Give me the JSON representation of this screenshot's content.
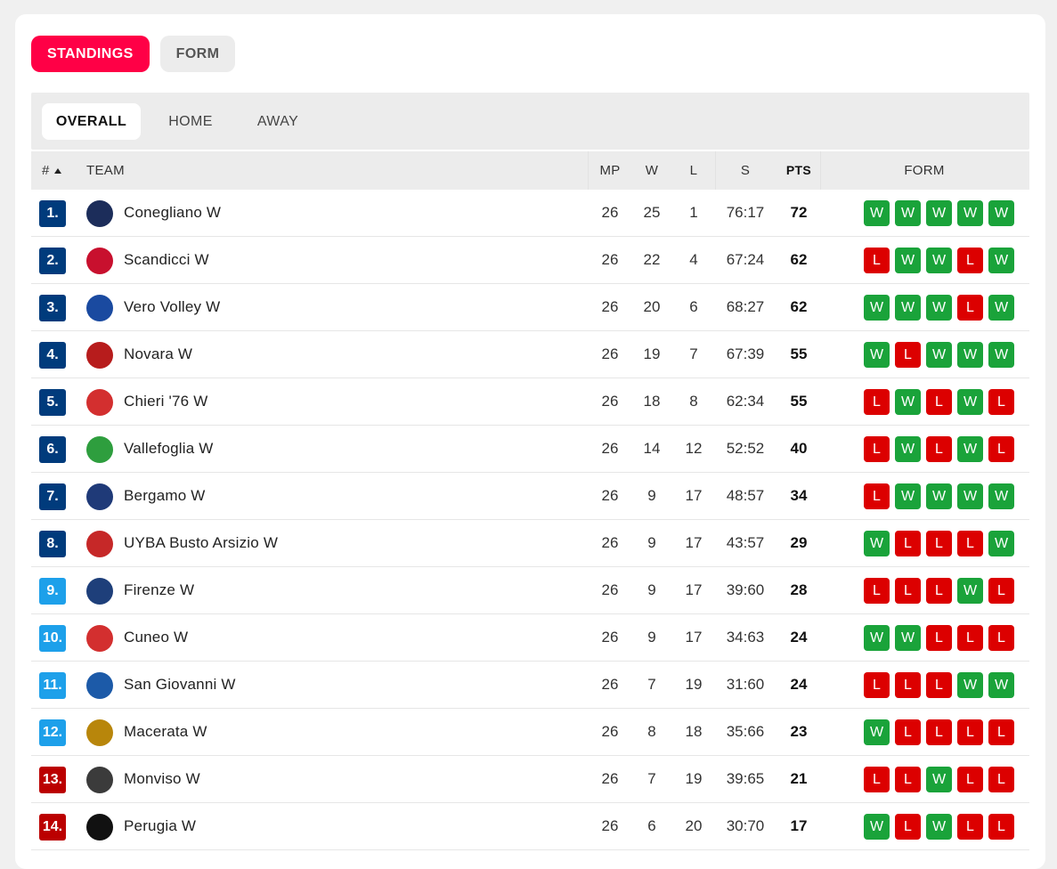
{
  "top_tabs": [
    {
      "label": "STANDINGS",
      "active": true
    },
    {
      "label": "FORM",
      "active": false
    }
  ],
  "sub_tabs": [
    {
      "label": "OVERALL",
      "active": true
    },
    {
      "label": "HOME",
      "active": false
    },
    {
      "label": "AWAY",
      "active": false
    }
  ],
  "table_header": {
    "rank": "#",
    "team": "TEAM",
    "mp": "MP",
    "w": "W",
    "l": "L",
    "s": "S",
    "pts": "PTS",
    "form": "FORM"
  },
  "colors": {
    "accent": "#ff0046",
    "rank_promo": "#003b7c",
    "rank_mid": "#1da0ea",
    "rank_releg": "#bb0000",
    "win": "#1aa33a",
    "loss": "#dc0000"
  },
  "rows": [
    {
      "rank": "1.",
      "zone": "promo",
      "team": "Conegliano W",
      "logo": "conegliano-logo",
      "mp": "26",
      "w": "25",
      "l": "1",
      "s": "76:17",
      "pts": "72",
      "form": [
        "W",
        "W",
        "W",
        "W",
        "W"
      ]
    },
    {
      "rank": "2.",
      "zone": "promo",
      "team": "Scandicci W",
      "logo": "scandicci-logo",
      "mp": "26",
      "w": "22",
      "l": "4",
      "s": "67:24",
      "pts": "62",
      "form": [
        "L",
        "W",
        "W",
        "L",
        "W"
      ]
    },
    {
      "rank": "3.",
      "zone": "promo",
      "team": "Vero Volley W",
      "logo": "vero-volley-logo",
      "mp": "26",
      "w": "20",
      "l": "6",
      "s": "68:27",
      "pts": "62",
      "form": [
        "W",
        "W",
        "W",
        "L",
        "W"
      ]
    },
    {
      "rank": "4.",
      "zone": "promo",
      "team": "Novara W",
      "logo": "novara-logo",
      "mp": "26",
      "w": "19",
      "l": "7",
      "s": "67:39",
      "pts": "55",
      "form": [
        "W",
        "L",
        "W",
        "W",
        "W"
      ]
    },
    {
      "rank": "5.",
      "zone": "promo",
      "team": "Chieri '76 W",
      "logo": "chieri-logo",
      "mp": "26",
      "w": "18",
      "l": "8",
      "s": "62:34",
      "pts": "55",
      "form": [
        "L",
        "W",
        "L",
        "W",
        "L"
      ]
    },
    {
      "rank": "6.",
      "zone": "promo",
      "team": "Vallefoglia W",
      "logo": "vallefoglia-logo",
      "mp": "26",
      "w": "14",
      "l": "12",
      "s": "52:52",
      "pts": "40",
      "form": [
        "L",
        "W",
        "L",
        "W",
        "L"
      ]
    },
    {
      "rank": "7.",
      "zone": "promo",
      "team": "Bergamo W",
      "logo": "bergamo-logo",
      "mp": "26",
      "w": "9",
      "l": "17",
      "s": "48:57",
      "pts": "34",
      "form": [
        "L",
        "W",
        "W",
        "W",
        "W"
      ]
    },
    {
      "rank": "8.",
      "zone": "promo",
      "team": "UYBA Busto Arsizio W",
      "logo": "uyba-logo",
      "mp": "26",
      "w": "9",
      "l": "17",
      "s": "43:57",
      "pts": "29",
      "form": [
        "W",
        "L",
        "L",
        "L",
        "W"
      ]
    },
    {
      "rank": "9.",
      "zone": "mid",
      "team": "Firenze W",
      "logo": "firenze-logo",
      "mp": "26",
      "w": "9",
      "l": "17",
      "s": "39:60",
      "pts": "28",
      "form": [
        "L",
        "L",
        "L",
        "W",
        "L"
      ]
    },
    {
      "rank": "10.",
      "zone": "mid",
      "team": "Cuneo W",
      "logo": "cuneo-logo",
      "mp": "26",
      "w": "9",
      "l": "17",
      "s": "34:63",
      "pts": "24",
      "form": [
        "W",
        "W",
        "L",
        "L",
        "L"
      ]
    },
    {
      "rank": "11.",
      "zone": "mid",
      "team": "San Giovanni W",
      "logo": "san-giovanni-logo",
      "mp": "26",
      "w": "7",
      "l": "19",
      "s": "31:60",
      "pts": "24",
      "form": [
        "L",
        "L",
        "L",
        "W",
        "W"
      ]
    },
    {
      "rank": "12.",
      "zone": "mid",
      "team": "Macerata W",
      "logo": "macerata-logo",
      "mp": "26",
      "w": "8",
      "l": "18",
      "s": "35:66",
      "pts": "23",
      "form": [
        "W",
        "L",
        "L",
        "L",
        "L"
      ]
    },
    {
      "rank": "13.",
      "zone": "releg",
      "team": "Monviso W",
      "logo": "monviso-logo",
      "mp": "26",
      "w": "7",
      "l": "19",
      "s": "39:65",
      "pts": "21",
      "form": [
        "L",
        "L",
        "W",
        "L",
        "L"
      ]
    },
    {
      "rank": "14.",
      "zone": "releg",
      "team": "Perugia W",
      "logo": "perugia-logo",
      "mp": "26",
      "w": "6",
      "l": "20",
      "s": "30:70",
      "pts": "17",
      "form": [
        "W",
        "L",
        "W",
        "L",
        "L"
      ]
    }
  ]
}
